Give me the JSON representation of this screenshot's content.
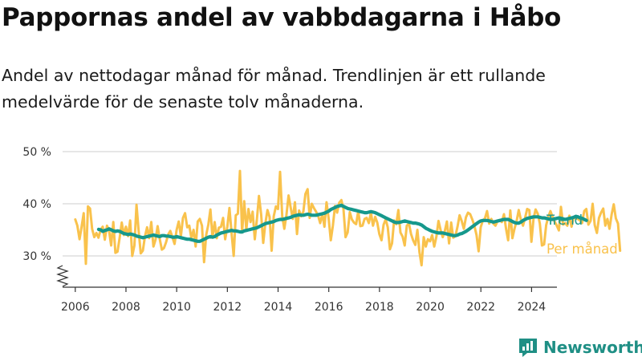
{
  "title": "Pappornas andel av vabbdagarna i Håbo",
  "subtitle": "Andel av nettodagar månad för månad. Trendlinjen är ett rullande medelvärde för de senaste tolv månaderna.",
  "brand": {
    "name": "Newsworthy",
    "icon": "newsworthy-logo-icon",
    "color": "#1f8f85"
  },
  "colors": {
    "monthly": "#f9c24c",
    "trend": "#16988c",
    "grid": "#d6d6d6",
    "axis": "#333333"
  },
  "chart_data": {
    "type": "line",
    "title": "Pappornas andel av vabbdagarna i Håbo",
    "xlabel": "",
    "ylabel": "",
    "ylim": [
      25,
      50
    ],
    "yticks": [
      30,
      40,
      50
    ],
    "ytick_labels": [
      "30 %",
      "40 %",
      "50 %"
    ],
    "xlim": [
      2005.5,
      2025.0
    ],
    "xticks": [
      2006,
      2008,
      2010,
      2012,
      2014,
      2016,
      2018,
      2020,
      2022,
      2024
    ],
    "xtick_labels": [
      "2006",
      "2008",
      "2010",
      "2012",
      "2014",
      "2016",
      "2018",
      "2020",
      "2022",
      "2024"
    ],
    "axis_break": true,
    "series": [
      {
        "name": "Per månad",
        "color": "#f9c24c",
        "x_start": 2006.0,
        "step": 0.0833,
        "values": [
          37.0,
          35.8,
          33.2,
          35.6,
          38.2,
          28.5,
          39.5,
          39.1,
          35.2,
          33.6,
          34.4,
          33.5,
          35.0,
          35.6,
          33.1,
          35.8,
          34.9,
          32.0,
          36.5,
          30.6,
          30.8,
          33.5,
          36.4,
          34.0,
          35.6,
          33.8,
          36.8,
          30.0,
          32.0,
          39.8,
          34.9,
          30.5,
          31.0,
          33.7,
          35.5,
          33.4,
          36.5,
          31.8,
          33.1,
          35.7,
          33.2,
          31.2,
          31.5,
          32.6,
          34.1,
          34.8,
          33.6,
          32.3,
          35.0,
          36.6,
          33.8,
          37.3,
          38.2,
          35.5,
          35.8,
          33.4,
          35.0,
          31.8,
          36.6,
          37.1,
          35.8,
          28.8,
          34.0,
          36.0,
          38.9,
          33.5,
          36.5,
          33.4,
          35.4,
          35.6,
          37.3,
          33.2,
          35.6,
          39.2,
          34.5,
          30.0,
          37.8,
          38.1,
          46.3,
          34.5,
          40.5,
          35.0,
          39.0,
          36.5,
          38.5,
          33.2,
          37.0,
          41.5,
          38.0,
          32.5,
          36.2,
          38.8,
          37.5,
          31.0,
          37.6,
          39.5,
          39.0,
          46.1,
          37.6,
          35.2,
          37.8,
          41.6,
          39.3,
          37.1,
          40.3,
          34.2,
          38.7,
          37.6,
          38.5,
          41.9,
          42.8,
          37.3,
          40.0,
          39.2,
          38.5,
          37.7,
          36.3,
          38.1,
          35.6,
          40.3,
          37.1,
          33.0,
          35.8,
          39.6,
          38.3,
          40.2,
          40.7,
          39.0,
          33.6,
          34.5,
          38.4,
          37.0,
          36.4,
          36.1,
          38.6,
          35.7,
          35.8,
          37.1,
          37.3,
          36.3,
          38.3,
          35.8,
          37.5,
          36.4,
          34.2,
          33.0,
          36.0,
          37.0,
          35.5,
          31.3,
          32.4,
          36.8,
          36.1,
          38.8,
          34.5,
          33.7,
          32.0,
          35.8,
          36.2,
          34.2,
          33.0,
          32.1,
          35.0,
          30.7,
          28.2,
          33.6,
          31.8,
          33.2,
          32.8,
          34.0,
          31.8,
          33.7,
          36.7,
          35.0,
          33.6,
          34.8,
          36.6,
          32.4,
          36.4,
          33.5,
          33.8,
          35.6,
          37.8,
          36.7,
          35.2,
          37.4,
          38.3,
          38.0,
          37.0,
          35.8,
          34.0,
          30.9,
          35.5,
          36.8,
          37.2,
          38.6,
          36.2,
          37.1,
          36.2,
          35.8,
          36.7,
          36.9,
          36.5,
          38.0,
          35.2,
          33.0,
          38.7,
          33.4,
          35.2,
          36.7,
          38.8,
          37.0,
          35.8,
          37.3,
          39.0,
          38.8,
          32.7,
          37.1,
          38.9,
          38.1,
          36.2,
          32.0,
          32.2,
          35.9,
          37.5,
          38.6,
          37.5,
          36.6,
          35.8,
          34.9,
          39.4,
          36.0,
          36.3,
          35.8,
          37.7,
          35.6,
          37.4,
          37.2,
          37.1,
          36.8,
          36.3,
          38.6,
          39.0,
          36.0,
          36.7,
          40.0,
          35.9,
          34.4,
          37.3,
          38.3,
          39.1,
          35.8,
          37.1,
          35.2,
          38.0,
          39.9,
          37.2,
          36.2,
          31.0
        ]
      },
      {
        "name": "Trend",
        "color": "#16988c",
        "x_start": 2006.92,
        "step": 0.0833,
        "values": [
          35.1,
          35.0,
          34.7,
          34.9,
          35.0,
          35.2,
          35.0,
          34.8,
          34.7,
          34.8,
          34.7,
          34.5,
          34.3,
          34.2,
          34.1,
          34.2,
          34.1,
          34.0,
          33.8,
          33.7,
          33.6,
          33.5,
          33.6,
          33.7,
          33.8,
          33.9,
          34.0,
          33.9,
          33.8,
          33.7,
          33.9,
          33.9,
          33.8,
          33.8,
          33.7,
          33.6,
          33.6,
          33.7,
          33.6,
          33.5,
          33.4,
          33.3,
          33.2,
          33.2,
          33.1,
          33.0,
          32.9,
          32.8,
          32.8,
          33.0,
          33.2,
          33.4,
          33.6,
          33.7,
          33.6,
          33.7,
          34.0,
          34.2,
          34.4,
          34.5,
          34.6,
          34.7,
          34.8,
          34.9,
          34.8,
          34.8,
          34.7,
          34.6,
          34.6,
          34.8,
          34.9,
          35.0,
          35.1,
          35.2,
          35.3,
          35.4,
          35.6,
          35.8,
          36.0,
          36.2,
          36.3,
          36.4,
          36.5,
          36.6,
          36.8,
          36.9,
          37.0,
          37.0,
          37.1,
          37.2,
          37.3,
          37.4,
          37.6,
          37.7,
          37.8,
          37.9,
          37.8,
          37.8,
          37.9,
          38.0,
          37.9,
          37.8,
          37.8,
          37.8,
          37.9,
          38.0,
          38.1,
          38.2,
          38.4,
          38.6,
          38.9,
          39.1,
          39.3,
          39.5,
          39.6,
          39.7,
          39.5,
          39.3,
          39.1,
          39.0,
          38.9,
          38.8,
          38.7,
          38.6,
          38.5,
          38.4,
          38.3,
          38.3,
          38.4,
          38.5,
          38.4,
          38.3,
          38.1,
          37.9,
          37.7,
          37.5,
          37.3,
          37.1,
          36.9,
          36.7,
          36.5,
          36.4,
          36.4,
          36.5,
          36.6,
          36.7,
          36.6,
          36.5,
          36.4,
          36.3,
          36.3,
          36.2,
          36.1,
          35.9,
          35.6,
          35.3,
          35.1,
          34.9,
          34.7,
          34.6,
          34.5,
          34.4,
          34.4,
          34.4,
          34.3,
          34.2,
          34.1,
          34.0,
          33.9,
          33.9,
          34.0,
          34.2,
          34.3,
          34.5,
          34.7,
          35.0,
          35.3,
          35.6,
          35.9,
          36.2,
          36.5,
          36.7,
          36.8,
          36.8,
          36.8,
          36.7,
          36.6,
          36.5,
          36.6,
          36.7,
          36.8,
          36.9,
          37.0,
          37.0,
          37.0,
          36.8,
          36.6,
          36.4,
          36.3,
          36.3,
          36.5,
          36.8,
          37.0,
          37.2,
          37.3,
          37.4,
          37.5,
          37.5,
          37.5,
          37.4,
          37.3,
          37.3,
          37.2,
          37.1,
          37.0,
          37.0,
          37.1,
          37.2,
          37.3,
          37.2,
          37.1,
          37.0,
          37.1,
          37.2,
          37.3,
          37.4,
          37.6,
          37.5,
          37.3,
          37.2,
          37.0,
          36.8
        ]
      }
    ],
    "legend": [
      {
        "label": "Trend",
        "color": "#16988c"
      },
      {
        "label": "Per månad",
        "color": "#f9c24c"
      }
    ],
    "legend_position": "right"
  }
}
